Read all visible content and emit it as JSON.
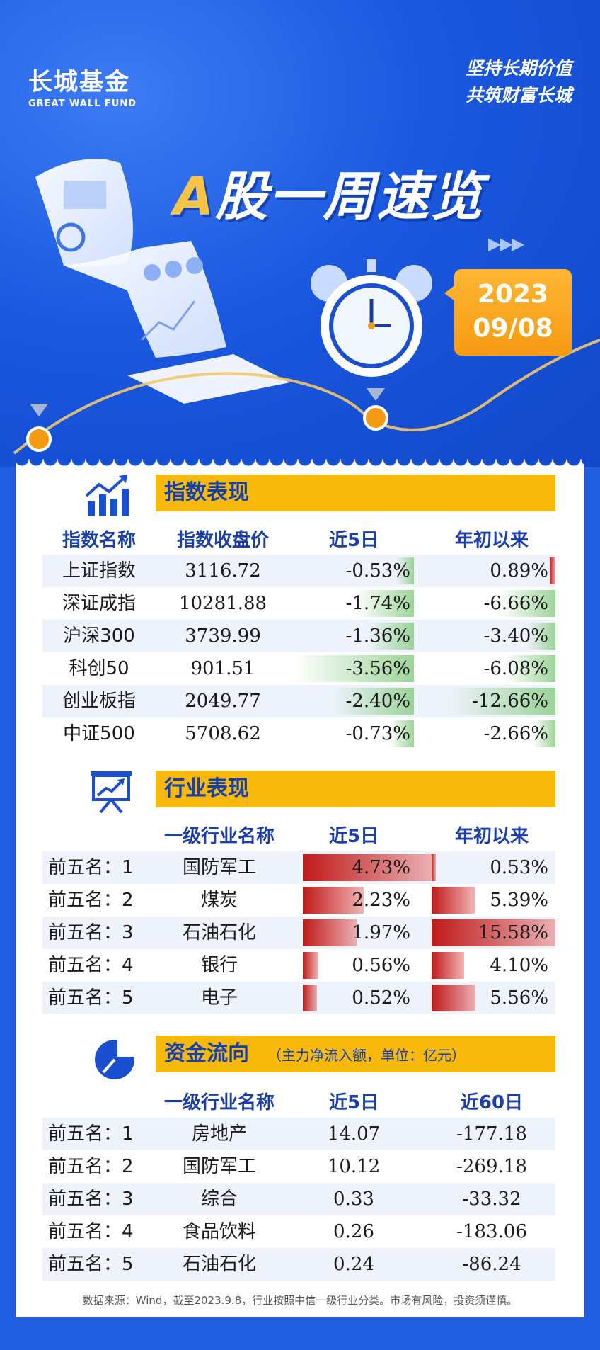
{
  "header": {
    "logo_cn": "长城基金",
    "logo_en": "GREAT WALL FUND",
    "slogan_1": "坚持长期价值",
    "slogan_2": "共筑财富长城",
    "title_a": "A",
    "title_rest": "股一周速览",
    "date_year": "2023",
    "date_day": "09/08",
    "clock_icon": "alarm-clock-icon",
    "arrows": "▶▶▶"
  },
  "index_section": {
    "title": "指数表现",
    "icon": "growth-chart-icon",
    "headers": [
      "指数名称",
      "指数收盘价",
      "近5日",
      "年初以来"
    ],
    "rows": [
      {
        "name": "上证指数",
        "close": "3116.72",
        "d5": "-0.53%",
        "ytd": "0.89%",
        "d5_v": -0.53,
        "ytd_v": 0.89
      },
      {
        "name": "深证成指",
        "close": "10281.88",
        "d5": "-1.74%",
        "ytd": "-6.66%",
        "d5_v": -1.74,
        "ytd_v": -6.66
      },
      {
        "name": "沪深300",
        "close": "3739.99",
        "d5": "-1.36%",
        "ytd": "-3.40%",
        "d5_v": -1.36,
        "ytd_v": -3.4
      },
      {
        "name": "科创50",
        "close": "901.51",
        "d5": "-3.56%",
        "ytd": "-6.08%",
        "d5_v": -3.56,
        "ytd_v": -6.08
      },
      {
        "name": "创业板指",
        "close": "2049.77",
        "d5": "-2.40%",
        "ytd": "-12.66%",
        "d5_v": -2.4,
        "ytd_v": -12.66
      },
      {
        "name": "中证500",
        "close": "5708.62",
        "d5": "-0.73%",
        "ytd": "-2.66%",
        "d5_v": -0.73,
        "ytd_v": -2.66
      }
    ]
  },
  "industry_section": {
    "title": "行业表现",
    "icon": "presentation-board-icon",
    "headers": [
      "一级行业名称",
      "近5日",
      "年初以来"
    ],
    "rows": [
      {
        "rank": "前五名：1",
        "name": "国防军工",
        "d5": "4.73%",
        "ytd": "0.53%",
        "d5_v": 4.73,
        "ytd_v": 0.53
      },
      {
        "rank": "前五名：2",
        "name": "煤炭",
        "d5": "2.23%",
        "ytd": "5.39%",
        "d5_v": 2.23,
        "ytd_v": 5.39
      },
      {
        "rank": "前五名：3",
        "name": "石油石化",
        "d5": "1.97%",
        "ytd": "15.58%",
        "d5_v": 1.97,
        "ytd_v": 15.58
      },
      {
        "rank": "前五名：4",
        "name": "银行",
        "d5": "0.56%",
        "ytd": "4.10%",
        "d5_v": 0.56,
        "ytd_v": 4.1
      },
      {
        "rank": "前五名：5",
        "name": "电子",
        "d5": "0.52%",
        "ytd": "5.56%",
        "d5_v": 0.52,
        "ytd_v": 5.56
      }
    ]
  },
  "fund_section": {
    "title": "资金流向",
    "note": "（主力净流入额，单位：亿元）",
    "icon": "pie-chart-icon",
    "headers": [
      "一级行业名称",
      "近5日",
      "近60日"
    ],
    "rows": [
      {
        "rank": "前五名：1",
        "name": "房地产",
        "d5": "14.07",
        "d60": "-177.18"
      },
      {
        "rank": "前五名：2",
        "name": "国防军工",
        "d5": "10.12",
        "d60": "-269.18"
      },
      {
        "rank": "前五名：3",
        "name": "综合",
        "d5": "0.33",
        "d60": "-33.32"
      },
      {
        "rank": "前五名：4",
        "name": "食品饮料",
        "d5": "0.26",
        "d60": "-183.06"
      },
      {
        "rank": "前五名：5",
        "name": "石油石化",
        "d5": "0.24",
        "d60": "-86.24"
      }
    ]
  },
  "footer": {
    "source": "数据来源：Wind，截至2023.9.8，行业按照中信一级行业分类。市场有风险，投资须谨慎。"
  },
  "colors": {
    "brand_blue": "#1f5fe0",
    "accent_orange": "#f9b90a",
    "positive_red": "#c01a1a",
    "negative_green": "#8ccd87"
  }
}
